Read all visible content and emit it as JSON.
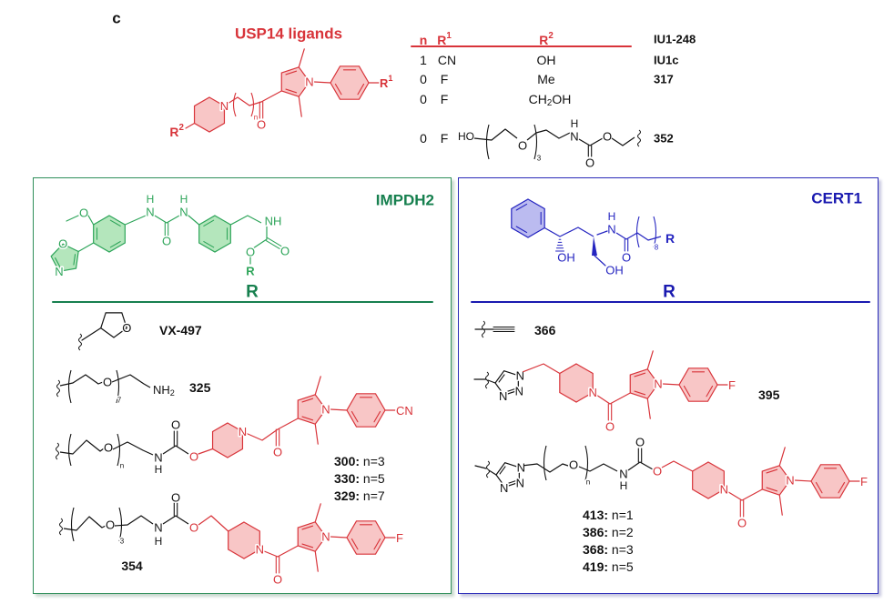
{
  "figure_label": "c",
  "colors": {
    "red": "#d8343a",
    "red_fill": "#f8c6c6",
    "green": "#2ea55a",
    "green_fill": "#b4e6bc",
    "green_text": "#17804f",
    "blue": "#2424c0",
    "blue_fill": "#bbbbf0",
    "blue_text": "#1a1ab0",
    "black": "#111111"
  },
  "atoms": {
    "N": "N",
    "O": "O",
    "H": "H",
    "NH": "NH",
    "OH": "OH",
    "HO": "HO",
    "CN": "CN",
    "F": "F",
    "R": "R",
    "sub2": "2",
    "sup1": "1",
    "sup2": "2",
    "n": "n",
    "three": "3",
    "seven": "7",
    "eight": "8",
    "CH": "CH"
  },
  "usp14": {
    "title": "USP14  ligands",
    "table": {
      "header": {
        "n": "n",
        "r1": "R",
        "r1_sup": "1",
        "r2": "R",
        "r2_sup": "2",
        "compound": "IU1-248"
      },
      "rows": [
        {
          "n": "1",
          "r1": "CN",
          "r2": "OH",
          "compound": "IU1c"
        },
        {
          "n": "0",
          "r1": "F",
          "r2": "Me",
          "compound": "317"
        },
        {
          "n": "0",
          "r1": "F",
          "r2_parts": [
            "CH",
            "2",
            "OH"
          ]
        },
        {
          "n": "0",
          "r1": "F",
          "compound": "352"
        }
      ]
    }
  },
  "impdh2": {
    "title": "IMPDH2",
    "r_header": "R",
    "entries": [
      {
        "compound": "VX-497"
      },
      {
        "compound": "325"
      },
      {
        "variants": [
          {
            "id": "300:",
            "n": " n=3"
          },
          {
            "id": "330:",
            "n": " n=5"
          },
          {
            "id": "329:",
            "n": " n=7"
          }
        ]
      },
      {
        "compound": "354"
      }
    ]
  },
  "cert1": {
    "title": "CERT1",
    "r_header": "R",
    "entries": [
      {
        "compound": "366"
      },
      {
        "compound": "395"
      },
      {
        "variants": [
          {
            "id": "413:",
            "n": " n=1"
          },
          {
            "id": "386:",
            "n": " n=2"
          },
          {
            "id": "368:",
            "n": " n=3"
          },
          {
            "id": "419:",
            "n": " n=5"
          }
        ]
      }
    ]
  }
}
